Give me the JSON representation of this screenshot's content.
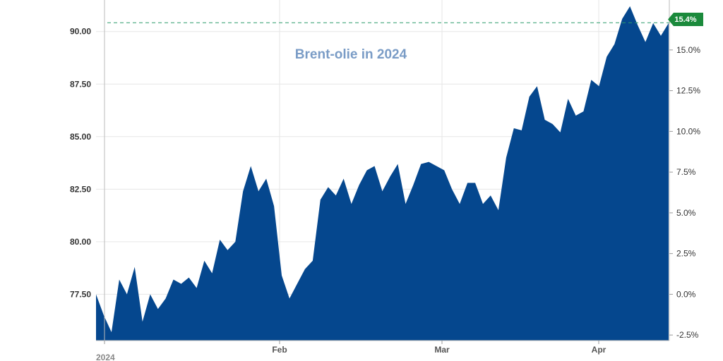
{
  "chart_data": {
    "type": "area",
    "title": "Brent-olie in 2024",
    "ylim": [
      75.3,
      91.5
    ],
    "yticks": [
      77.5,
      80.0,
      82.5,
      85.0,
      87.5,
      90.0
    ],
    "ytick_labels": [
      "77.50",
      "80.00",
      "82.50",
      "85.00",
      "87.50",
      "90.00"
    ],
    "y2_ticks": [
      -2.5,
      0.0,
      2.5,
      5.0,
      7.5,
      10.0,
      12.5,
      15.0
    ],
    "y2_tick_labels": [
      "-2.5%",
      "0.0%",
      "2.5%",
      "5.0%",
      "7.5%",
      "10.0%",
      "12.5%",
      "15.0%"
    ],
    "x_labels": [
      "2024",
      "Feb",
      "Mar",
      "Apr"
    ],
    "badge": "15.4%",
    "reference_value": 90.4,
    "grid": true,
    "colors": {
      "fill": "#05478e",
      "title": "#7a9cc6",
      "badge": "#1b8a3c",
      "grid": "#e6e6e6"
    },
    "series": [
      {
        "values": [
          77.5,
          76.5,
          75.7,
          78.2,
          77.5,
          78.8,
          76.2,
          77.5,
          76.8,
          77.3,
          78.2,
          78.0,
          78.3,
          77.8,
          79.1,
          78.5,
          80.1,
          79.6,
          80.0,
          82.4,
          83.6,
          82.4,
          83.0,
          81.7,
          78.4,
          77.3,
          78.0,
          78.7,
          79.1,
          82.0,
          82.6,
          82.2,
          83.0,
          81.8,
          82.7,
          83.4,
          83.6,
          82.4,
          83.1,
          83.7,
          81.8,
          82.7,
          83.7,
          83.8,
          83.6,
          83.4,
          82.5,
          81.8,
          82.8,
          82.8,
          81.8,
          82.2,
          81.5,
          84.0,
          85.4,
          85.3,
          86.9,
          87.4,
          85.8,
          85.6,
          85.2,
          86.8,
          86.0,
          86.2,
          87.7,
          87.4,
          88.8,
          89.4,
          90.6,
          91.2,
          90.3,
          89.5,
          90.4,
          89.8,
          90.4
        ]
      }
    ]
  }
}
